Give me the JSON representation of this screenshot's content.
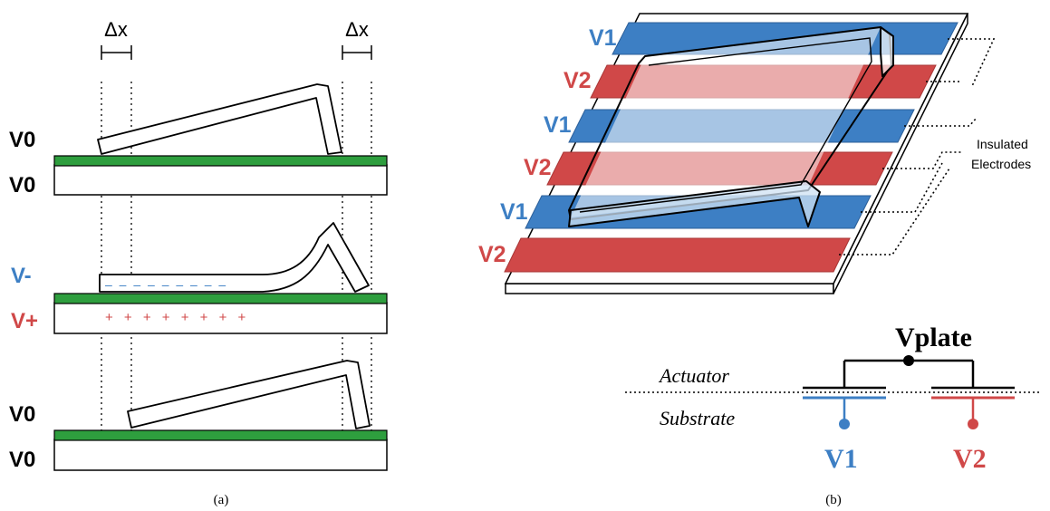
{
  "panel_a": {
    "caption": "(a)",
    "dx_left": "Δx",
    "dx_right": "Δx",
    "stage1": {
      "top_label": "V0",
      "bottom_label": "V0"
    },
    "stage2": {
      "top_label": "V-",
      "bottom_label": "V+",
      "minus_marks": "– – – – – – – – –",
      "plus_marks": "+ + + + + + + +"
    },
    "stage3": {
      "top_label": "V0",
      "bottom_label": "V0"
    }
  },
  "panel_b": {
    "caption": "(b)",
    "electrode_labels": [
      "V1",
      "V2",
      "V1",
      "V2",
      "V1",
      "V2"
    ],
    "insulated_line1": "Insulated",
    "insulated_line2": "Electrodes",
    "circuit": {
      "vplate": "Vplate",
      "actuator": "Actuator",
      "substrate": "Substrate",
      "v1": "V1",
      "v2": "V2"
    }
  },
  "colors": {
    "blue": "#3d7fc4",
    "red": "#d04848",
    "green": "#2e9e3e",
    "light_blue": "#b7d2ec",
    "light_red": "#eeb0b0"
  }
}
